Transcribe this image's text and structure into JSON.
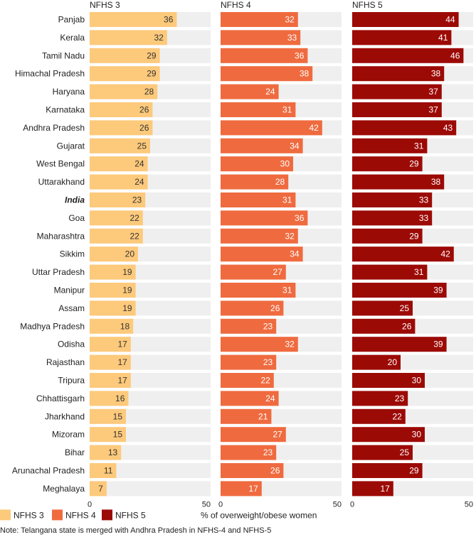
{
  "chart_data": {
    "type": "bar",
    "orientation": "horizontal",
    "xlabel": "% of overweight/obese women",
    "xlim": [
      0,
      50
    ],
    "x_ticks": [
      "0",
      "50"
    ],
    "note": "Note: Telangana state is merged with Andhra Pradesh in NFHS-4 and NFHS-5",
    "highlight_category": "India",
    "categories": [
      "Panjab",
      "Kerala",
      "Tamil Nadu",
      "Himachal Pradesh",
      "Haryana",
      "Karnataka",
      "Andhra Pradesh",
      "Gujarat",
      "West Bengal",
      "Uttarakhand",
      "India",
      "Goa",
      "Maharashtra",
      "Sikkim",
      "Uttar Pradesh",
      "Manipur",
      "Assam",
      "Madhya Pradesh",
      "Odisha",
      "Rajasthan",
      "Tripura",
      "Chhattisgarh",
      "Jharkhand",
      "Mizoram",
      "Bihar",
      "Arunachal Pradesh",
      "Meghalaya"
    ],
    "series": [
      {
        "name": "NFHS 3",
        "color": "#fdc97b",
        "label_color": "#333333",
        "values": [
          36,
          32,
          29,
          29,
          28,
          26,
          26,
          25,
          24,
          24,
          23,
          22,
          22,
          20,
          19,
          19,
          19,
          18,
          17,
          17,
          17,
          16,
          15,
          15,
          13,
          11,
          7
        ]
      },
      {
        "name": "NFHS 4",
        "color": "#ef6b3f",
        "label_color": "#ffffff",
        "values": [
          32,
          33,
          36,
          38,
          24,
          31,
          42,
          34,
          30,
          28,
          31,
          36,
          32,
          34,
          27,
          31,
          26,
          23,
          32,
          23,
          22,
          24,
          21,
          27,
          23,
          26,
          17
        ]
      },
      {
        "name": "NFHS 5",
        "color": "#9c0a06",
        "label_color": "#ffffff",
        "values": [
          44,
          41,
          46,
          38,
          37,
          37,
          43,
          31,
          29,
          38,
          33,
          33,
          29,
          42,
          31,
          39,
          25,
          26,
          39,
          20,
          30,
          23,
          22,
          30,
          25,
          29,
          17
        ]
      }
    ],
    "background_color": "#efefef",
    "legend": {
      "position": "bottom-left",
      "entries": [
        "NFHS 3",
        "NFHS 4",
        "NFHS 5"
      ]
    }
  }
}
